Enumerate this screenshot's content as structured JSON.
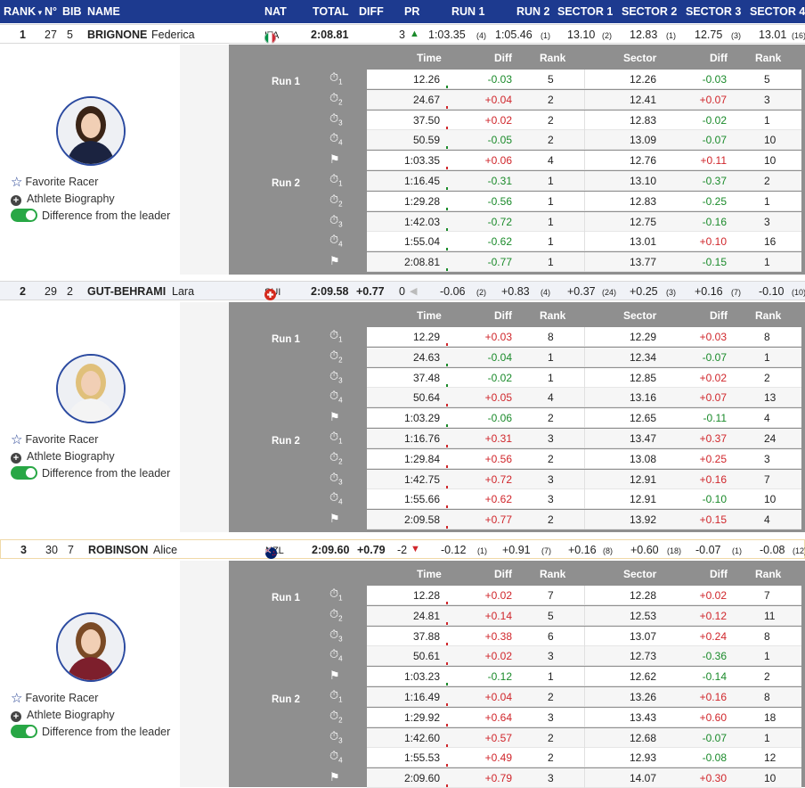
{
  "header": {
    "rank": "RANK",
    "n": "N°",
    "bib": "BIB",
    "name": "NAME",
    "nat": "NAT",
    "total": "TOTAL",
    "diff": "DIFF",
    "pr": "PR",
    "run1": "RUN 1",
    "run2": "RUN 2",
    "s1": "SECTOR 1",
    "s2": "SECTOR 2",
    "s3": "SECTOR 3",
    "s4": "SECTOR 4"
  },
  "labels": {
    "run1": "Run 1",
    "run2": "Run 2",
    "total": "Total",
    "fav": "Favorite Racer",
    "bio": "Athlete Biography",
    "diffleader": "Difference from the leader",
    "th_time": "Time",
    "th_diff": "Diff",
    "th_rank": "Rank",
    "th_sector": "Sector",
    "th_diff2": "Diff",
    "th_rank2": "Rank"
  },
  "racers": [
    {
      "rank": "1",
      "n": "27",
      "bib": "5",
      "last": "BRIGNONE",
      "first": "Federica",
      "nat": "ITA",
      "total": "2:08.81",
      "diff": "",
      "pr": "3",
      "pr_dir": "up",
      "run1": "1:03.35",
      "run1_r": "(4)",
      "run2": "1:05.46",
      "run2_r": "(1)",
      "s1": "13.10",
      "s1_r": "(2)",
      "s2": "12.83",
      "s2_r": "(1)",
      "s3": "12.75",
      "s3_r": "(3)",
      "s4": "13.01",
      "s4_r": "(16)",
      "rows": [
        {
          "t": "12.26",
          "d": "-0.03",
          "r": "5",
          "s": "12.26",
          "sd": "-0.03",
          "sr": "5"
        },
        {
          "t": "24.67",
          "d": "+0.04",
          "r": "2",
          "s": "12.41",
          "sd": "+0.07",
          "sr": "3"
        },
        {
          "t": "37.50",
          "d": "+0.02",
          "r": "2",
          "s": "12.83",
          "sd": "-0.02",
          "sr": "1"
        },
        {
          "t": "50.59",
          "d": "-0.05",
          "r": "2",
          "s": "13.09",
          "sd": "-0.07",
          "sr": "10"
        },
        {
          "t": "1:03.35",
          "d": "+0.06",
          "r": "4",
          "s": "12.76",
          "sd": "+0.11",
          "sr": "10"
        },
        {
          "t": "1:16.45",
          "d": "-0.31",
          "r": "1",
          "s": "13.10",
          "sd": "-0.37",
          "sr": "2"
        },
        {
          "t": "1:29.28",
          "d": "-0.56",
          "r": "1",
          "s": "12.83",
          "sd": "-0.25",
          "sr": "1"
        },
        {
          "t": "1:42.03",
          "d": "-0.72",
          "r": "1",
          "s": "12.75",
          "sd": "-0.16",
          "sr": "3"
        },
        {
          "t": "1:55.04",
          "d": "-0.62",
          "r": "1",
          "s": "13.01",
          "sd": "+0.10",
          "sr": "16"
        },
        {
          "t": "2:08.81",
          "d": "-0.77",
          "r": "1",
          "s": "13.77",
          "sd": "-0.15",
          "sr": "1"
        }
      ]
    },
    {
      "rank": "2",
      "n": "29",
      "bib": "2",
      "last": "GUT-BEHRAMI",
      "first": "Lara",
      "nat": "SUI",
      "total": "2:09.58",
      "diff": "+0.77",
      "pr": "0",
      "pr_dir": "left",
      "run1": "-0.06",
      "run1_r": "(2)",
      "run2": "+0.83",
      "run2_r": "(4)",
      "s1": "+0.37",
      "s1_r": "(24)",
      "s2": "+0.25",
      "s2_r": "(3)",
      "s3": "+0.16",
      "s3_r": "(7)",
      "s4": "-0.10",
      "s4_r": "(10)",
      "rows": [
        {
          "t": "12.29",
          "d": "+0.03",
          "r": "8",
          "s": "12.29",
          "sd": "+0.03",
          "sr": "8"
        },
        {
          "t": "24.63",
          "d": "-0.04",
          "r": "1",
          "s": "12.34",
          "sd": "-0.07",
          "sr": "1"
        },
        {
          "t": "37.48",
          "d": "-0.02",
          "r": "1",
          "s": "12.85",
          "sd": "+0.02",
          "sr": "2"
        },
        {
          "t": "50.64",
          "d": "+0.05",
          "r": "4",
          "s": "13.16",
          "sd": "+0.07",
          "sr": "13"
        },
        {
          "t": "1:03.29",
          "d": "-0.06",
          "r": "2",
          "s": "12.65",
          "sd": "-0.11",
          "sr": "4"
        },
        {
          "t": "1:16.76",
          "d": "+0.31",
          "r": "3",
          "s": "13.47",
          "sd": "+0.37",
          "sr": "24"
        },
        {
          "t": "1:29.84",
          "d": "+0.56",
          "r": "2",
          "s": "13.08",
          "sd": "+0.25",
          "sr": "3"
        },
        {
          "t": "1:42.75",
          "d": "+0.72",
          "r": "3",
          "s": "12.91",
          "sd": "+0.16",
          "sr": "7"
        },
        {
          "t": "1:55.66",
          "d": "+0.62",
          "r": "3",
          "s": "12.91",
          "sd": "-0.10",
          "sr": "10"
        },
        {
          "t": "2:09.58",
          "d": "+0.77",
          "r": "2",
          "s": "13.92",
          "sd": "+0.15",
          "sr": "4"
        }
      ]
    },
    {
      "rank": "3",
      "n": "30",
      "bib": "7",
      "last": "ROBINSON",
      "first": "Alice",
      "nat": "NZL",
      "total": "2:09.60",
      "diff": "+0.79",
      "pr": "-2",
      "pr_dir": "down",
      "run1": "-0.12",
      "run1_r": "(1)",
      "run2": "+0.91",
      "run2_r": "(7)",
      "s1": "+0.16",
      "s1_r": "(8)",
      "s2": "+0.60",
      "s2_r": "(18)",
      "s3": "-0.07",
      "s3_r": "(1)",
      "s4": "-0.08",
      "s4_r": "(12)",
      "rows": [
        {
          "t": "12.28",
          "d": "+0.02",
          "r": "7",
          "s": "12.28",
          "sd": "+0.02",
          "sr": "7"
        },
        {
          "t": "24.81",
          "d": "+0.14",
          "r": "5",
          "s": "12.53",
          "sd": "+0.12",
          "sr": "11"
        },
        {
          "t": "37.88",
          "d": "+0.38",
          "r": "6",
          "s": "13.07",
          "sd": "+0.24",
          "sr": "8"
        },
        {
          "t": "50.61",
          "d": "+0.02",
          "r": "3",
          "s": "12.73",
          "sd": "-0.36",
          "sr": "1"
        },
        {
          "t": "1:03.23",
          "d": "-0.12",
          "r": "1",
          "s": "12.62",
          "sd": "-0.14",
          "sr": "2"
        },
        {
          "t": "1:16.49",
          "d": "+0.04",
          "r": "2",
          "s": "13.26",
          "sd": "+0.16",
          "sr": "8"
        },
        {
          "t": "1:29.92",
          "d": "+0.64",
          "r": "3",
          "s": "13.43",
          "sd": "+0.60",
          "sr": "18"
        },
        {
          "t": "1:42.60",
          "d": "+0.57",
          "r": "2",
          "s": "12.68",
          "sd": "-0.07",
          "sr": "1"
        },
        {
          "t": "1:55.53",
          "d": "+0.49",
          "r": "2",
          "s": "12.93",
          "sd": "-0.08",
          "sr": "12"
        },
        {
          "t": "2:09.60",
          "d": "+0.79",
          "r": "3",
          "s": "14.07",
          "sd": "+0.30",
          "sr": "10"
        }
      ]
    }
  ],
  "colors": {
    "header": "#1d3a8f",
    "positive": "#d0262b",
    "negative": "#1a8a2a"
  }
}
